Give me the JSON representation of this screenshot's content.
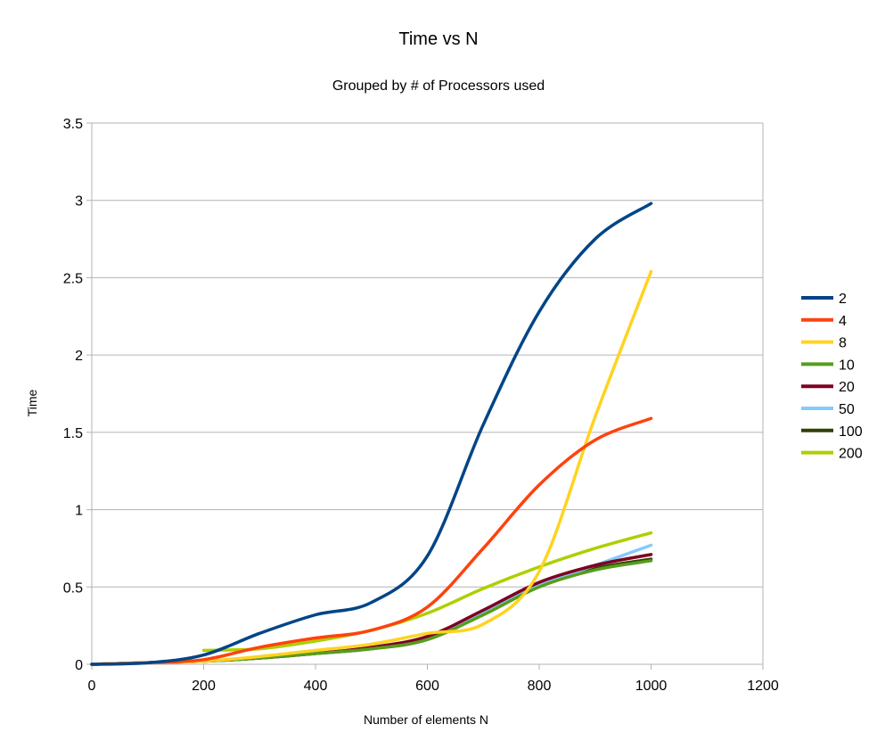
{
  "chart_data": {
    "type": "line",
    "title": "Time vs N",
    "subtitle": "Grouped by # of Processors used",
    "xlabel": "Number of elements N",
    "ylabel": "Time",
    "xlim": [
      0,
      1200
    ],
    "ylim": [
      0,
      3.5
    ],
    "xticks": [
      0,
      200,
      400,
      600,
      800,
      1000,
      1200
    ],
    "yticks": [
      0,
      0.5,
      1,
      1.5,
      2,
      2.5,
      3,
      3.5
    ],
    "xtick_labels": [
      "0",
      "200",
      "400",
      "600",
      "800",
      "1000",
      "1200"
    ],
    "ytick_labels": [
      "0",
      "0.5",
      "1",
      "1.5",
      "2",
      "2.5",
      "3",
      "3.5"
    ],
    "grid": "horizontal",
    "legend_position": "right",
    "x": [
      0,
      100,
      200,
      300,
      400,
      500,
      600,
      700,
      800,
      900,
      1000
    ],
    "series": [
      {
        "name": "2",
        "color": "#004586",
        "values": [
          0,
          0.01,
          0.06,
          0.2,
          0.32,
          0.4,
          0.7,
          1.55,
          2.28,
          2.75,
          2.98
        ]
      },
      {
        "name": "4",
        "color": "#ff420e",
        "values": [
          0,
          0.01,
          0.03,
          0.11,
          0.17,
          0.22,
          0.37,
          0.75,
          1.16,
          1.45,
          1.59
        ]
      },
      {
        "name": "8",
        "color": "#ffd320",
        "values": [
          0,
          0.01,
          0.02,
          0.05,
          0.09,
          0.13,
          0.2,
          0.26,
          0.6,
          1.6,
          2.54
        ]
      },
      {
        "name": "10",
        "color": "#579d1c",
        "values": [
          0,
          0.01,
          0.02,
          0.04,
          0.07,
          0.1,
          0.16,
          0.32,
          0.5,
          0.61,
          0.67
        ]
      },
      {
        "name": "20",
        "color": "#7e0021",
        "values": [
          0,
          0.01,
          0.02,
          0.04,
          0.07,
          0.11,
          0.18,
          0.35,
          0.53,
          0.64,
          0.71
        ]
      },
      {
        "name": "50",
        "color": "#83caff",
        "values": [
          0,
          0.01,
          0.02,
          0.04,
          0.07,
          0.1,
          0.17,
          0.33,
          0.51,
          0.64,
          0.77
        ]
      },
      {
        "name": "100",
        "color": "#314004",
        "values": [
          0,
          0.01,
          0.02,
          0.04,
          0.07,
          0.1,
          0.16,
          0.33,
          0.51,
          0.62,
          0.68
        ]
      },
      {
        "name": "200",
        "color": "#aecf00",
        "values": [
          null,
          null,
          0.09,
          0.1,
          0.15,
          0.22,
          0.33,
          0.49,
          0.63,
          0.75,
          0.85
        ]
      }
    ]
  }
}
